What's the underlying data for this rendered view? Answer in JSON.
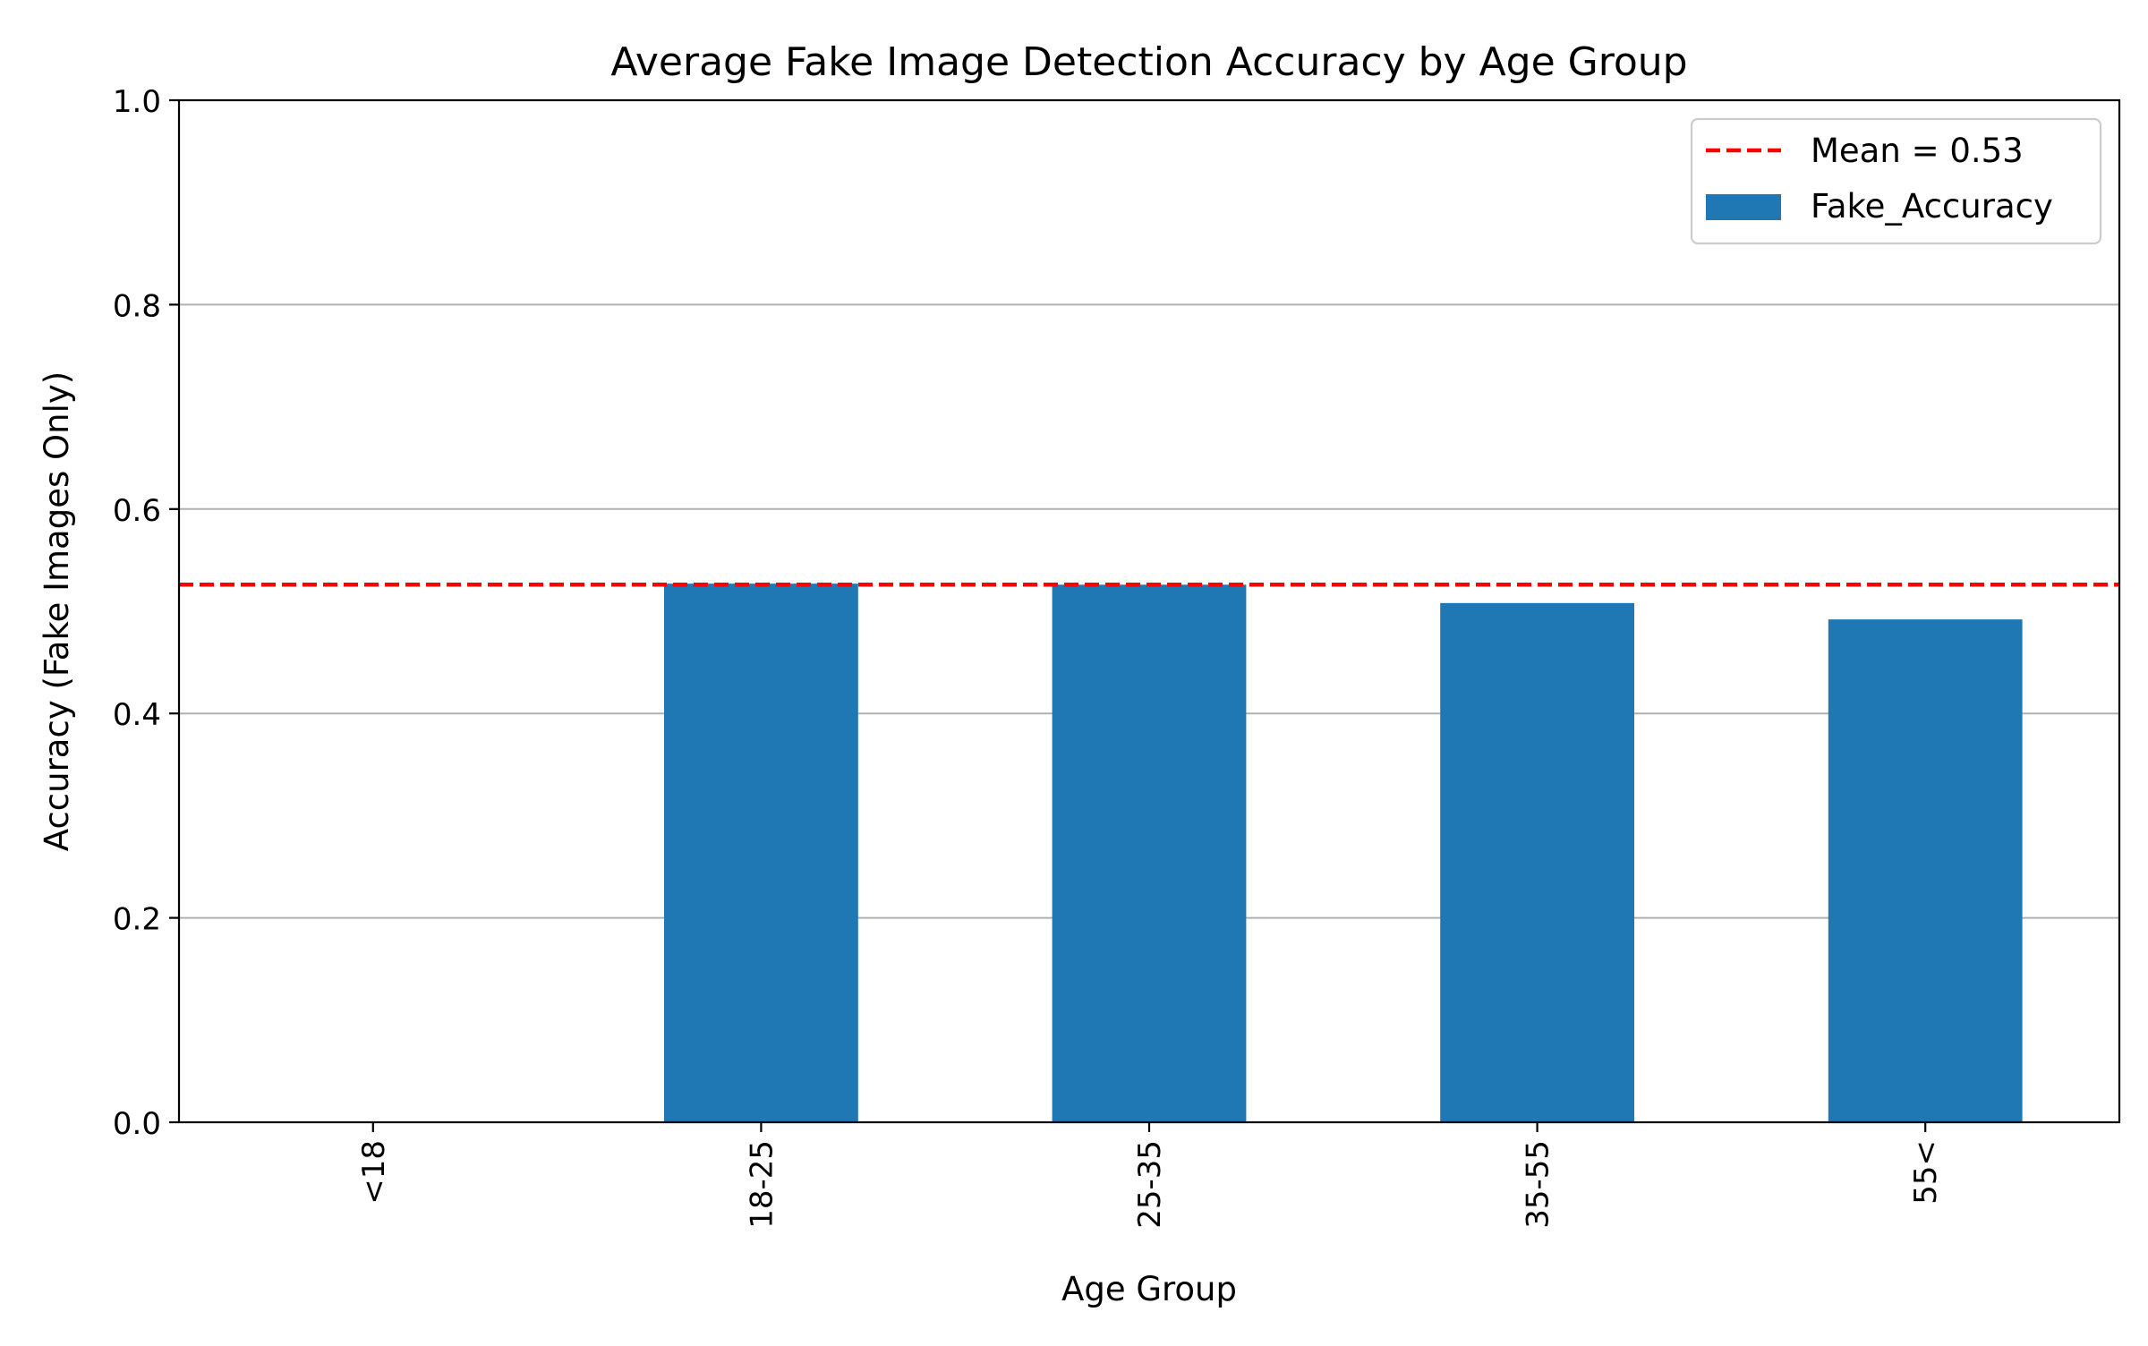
{
  "chart_data": {
    "type": "bar",
    "title": "Average Fake Image Detection Accuracy by Age Group",
    "xlabel": "Age Group",
    "ylabel": "Accuracy (Fake Images Only)",
    "categories": [
      "<18",
      "18-25",
      "25-35",
      "35-55",
      "55<"
    ],
    "series": [
      {
        "name": "Fake_Accuracy",
        "values": [
          0.0,
          0.527,
          0.526,
          0.508,
          0.492
        ],
        "color": "#1f77b4"
      }
    ],
    "mean_line": {
      "label": "Mean = 0.53",
      "value": 0.526,
      "color": "#ff0000",
      "style": "dashed"
    },
    "ylim": [
      0,
      1.0
    ],
    "yticks": [
      "0.0",
      "0.2",
      "0.4",
      "0.6",
      "0.8",
      "1.0"
    ],
    "ytick_values": [
      0.0,
      0.2,
      0.4,
      0.6,
      0.8,
      1.0
    ],
    "grid": "horizontal",
    "xtick_rotation": "vertical",
    "legend_position": "top-right"
  }
}
